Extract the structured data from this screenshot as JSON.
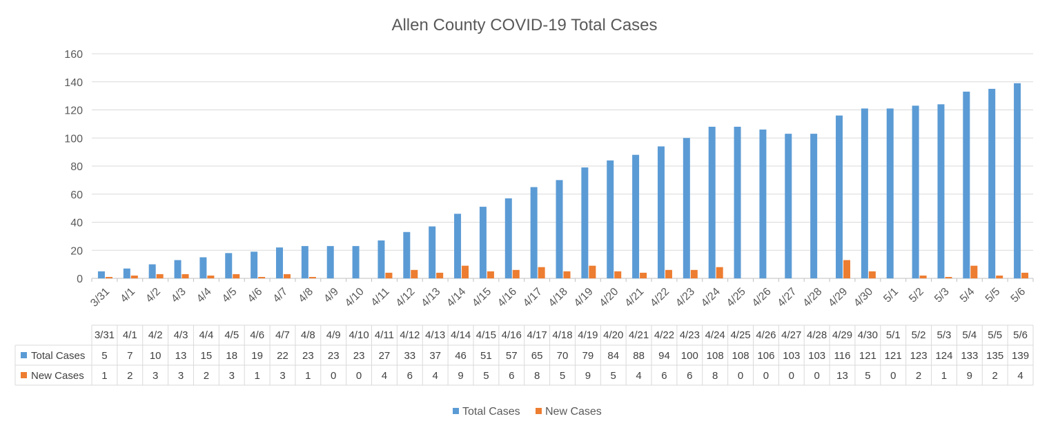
{
  "chart_data": {
    "type": "bar",
    "title": "Allen County COVID-19 Total Cases",
    "xlabel": "",
    "ylabel": "",
    "ylim": [
      0,
      160
    ],
    "yticks": [
      0,
      20,
      40,
      60,
      80,
      100,
      120,
      140,
      160
    ],
    "grid": true,
    "legend_position": "bottom",
    "data_table": true,
    "categories": [
      "3/31",
      "4/1",
      "4/2",
      "4/3",
      "4/4",
      "4/5",
      "4/6",
      "4/7",
      "4/8",
      "4/9",
      "4/10",
      "4/11",
      "4/12",
      "4/13",
      "4/14",
      "4/15",
      "4/16",
      "4/17",
      "4/18",
      "4/19",
      "4/20",
      "4/21",
      "4/22",
      "4/23",
      "4/24",
      "4/25",
      "4/26",
      "4/27",
      "4/28",
      "4/29",
      "4/30",
      "5/1",
      "5/2",
      "5/3",
      "5/4",
      "5/5",
      "5/6"
    ],
    "series": [
      {
        "name": "Total Cases",
        "color": "#5B9BD5",
        "values": [
          5,
          7,
          10,
          13,
          15,
          18,
          19,
          22,
          23,
          23,
          23,
          27,
          33,
          37,
          46,
          51,
          57,
          65,
          70,
          79,
          84,
          88,
          94,
          100,
          108,
          108,
          106,
          103,
          103,
          116,
          121,
          121,
          123,
          124,
          133,
          135,
          139
        ]
      },
      {
        "name": "New Cases",
        "color": "#ED7D31",
        "values": [
          1,
          2,
          3,
          3,
          2,
          3,
          1,
          3,
          1,
          0,
          0,
          4,
          6,
          4,
          9,
          5,
          6,
          8,
          5,
          9,
          5,
          4,
          6,
          6,
          8,
          0,
          0,
          0,
          0,
          13,
          5,
          0,
          2,
          1,
          9,
          2,
          4
        ]
      }
    ]
  }
}
